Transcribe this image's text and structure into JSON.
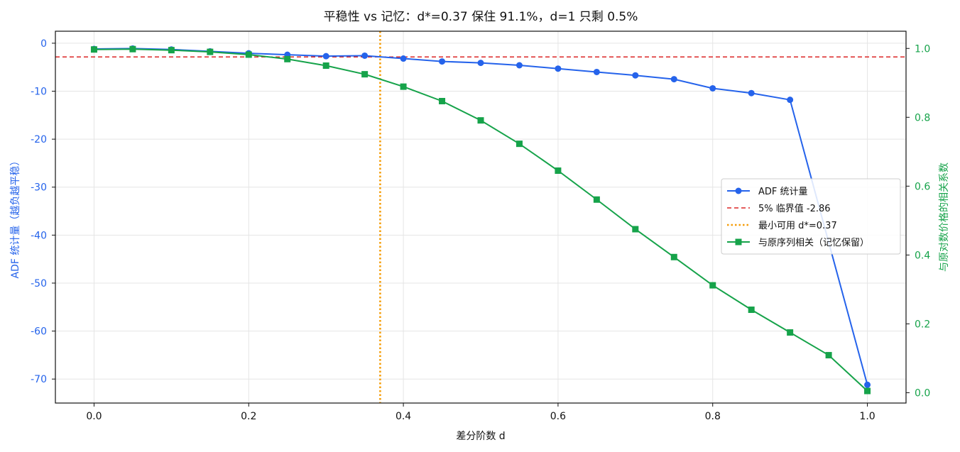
{
  "chart_data": {
    "type": "line",
    "title": "平稳性 vs 记忆：d*=0.37 保住 91.1%，d=1 只剩 0.5%",
    "xlabel": "差分阶数 d",
    "ylabel_left": "ADF 统计量（越负越平稳）",
    "ylabel_right": "与原对数价格的相关系数",
    "xlim": [
      -0.05,
      1.05
    ],
    "ylim_left": [
      -75,
      2.5
    ],
    "ylim_right": [
      -0.03,
      1.05
    ],
    "x_ticks": [
      0.0,
      0.2,
      0.4,
      0.6,
      0.8,
      1.0
    ],
    "x_tick_labels": [
      "0.0",
      "0.2",
      "0.4",
      "0.6",
      "0.8",
      "1.0"
    ],
    "y_left_ticks": [
      0,
      -10,
      -20,
      -30,
      -40,
      -50,
      -60,
      -70
    ],
    "y_left_tick_labels": [
      "0",
      "-10",
      "-20",
      "-30",
      "-40",
      "-50",
      "-60",
      "-70"
    ],
    "y_right_ticks": [
      0.0,
      0.2,
      0.4,
      0.6,
      0.8,
      1.0
    ],
    "y_right_tick_labels": [
      "0.0",
      "0.2",
      "0.4",
      "0.6",
      "0.8",
      "1.0"
    ],
    "grid": true,
    "legend_position": "center-right",
    "x": [
      0.0,
      0.05,
      0.1,
      0.15,
      0.2,
      0.25,
      0.3,
      0.35,
      0.4,
      0.45,
      0.5,
      0.55,
      0.6,
      0.65,
      0.7,
      0.75,
      0.8,
      0.85,
      0.9,
      0.95,
      1.0
    ],
    "series": [
      {
        "name": "ADF 统计量",
        "axis": "left",
        "color": "#2563eb",
        "marker": "circle",
        "x": [
          0.0,
          0.05,
          0.1,
          0.15,
          0.2,
          0.25,
          0.3,
          0.35,
          0.4,
          0.45,
          0.5,
          0.55,
          0.6,
          0.65,
          0.7,
          0.75,
          0.8,
          0.85,
          0.9,
          1.0
        ],
        "values": [
          -1.2,
          -1.1,
          -1.3,
          -1.7,
          -2.1,
          -2.4,
          -2.7,
          -2.6,
          -3.2,
          -3.8,
          -4.1,
          -4.6,
          -5.3,
          -6.0,
          -6.7,
          -7.5,
          -9.4,
          -10.4,
          -11.8,
          -71.2
        ]
      },
      {
        "name": "与原序列相关（记忆保留）",
        "axis": "right",
        "color": "#16a34a",
        "marker": "square",
        "x": [
          0.0,
          0.05,
          0.1,
          0.15,
          0.2,
          0.25,
          0.3,
          0.35,
          0.4,
          0.45,
          0.5,
          0.55,
          0.6,
          0.65,
          0.7,
          0.75,
          0.8,
          0.85,
          0.9,
          0.95,
          1.0
        ],
        "values": [
          0.997,
          0.998,
          0.995,
          0.99,
          0.982,
          0.969,
          0.95,
          0.925,
          0.889,
          0.847,
          0.791,
          0.723,
          0.645,
          0.561,
          0.475,
          0.394,
          0.312,
          0.241,
          0.175,
          0.109,
          0.005
        ]
      }
    ],
    "reference_lines": [
      {
        "name": "5% 临界值 -2.86",
        "orientation": "horizontal",
        "axis": "left",
        "value": -2.86,
        "color": "#dc2626",
        "style": "dashed"
      },
      {
        "name": "最小可用 d*=0.37",
        "orientation": "vertical",
        "value": 0.37,
        "color": "#f59e0b",
        "style": "dotted"
      }
    ],
    "colors": {
      "left_axis": "#2563eb",
      "right_axis": "#16a34a",
      "critical": "#dc2626",
      "dstar": "#f59e0b"
    }
  }
}
